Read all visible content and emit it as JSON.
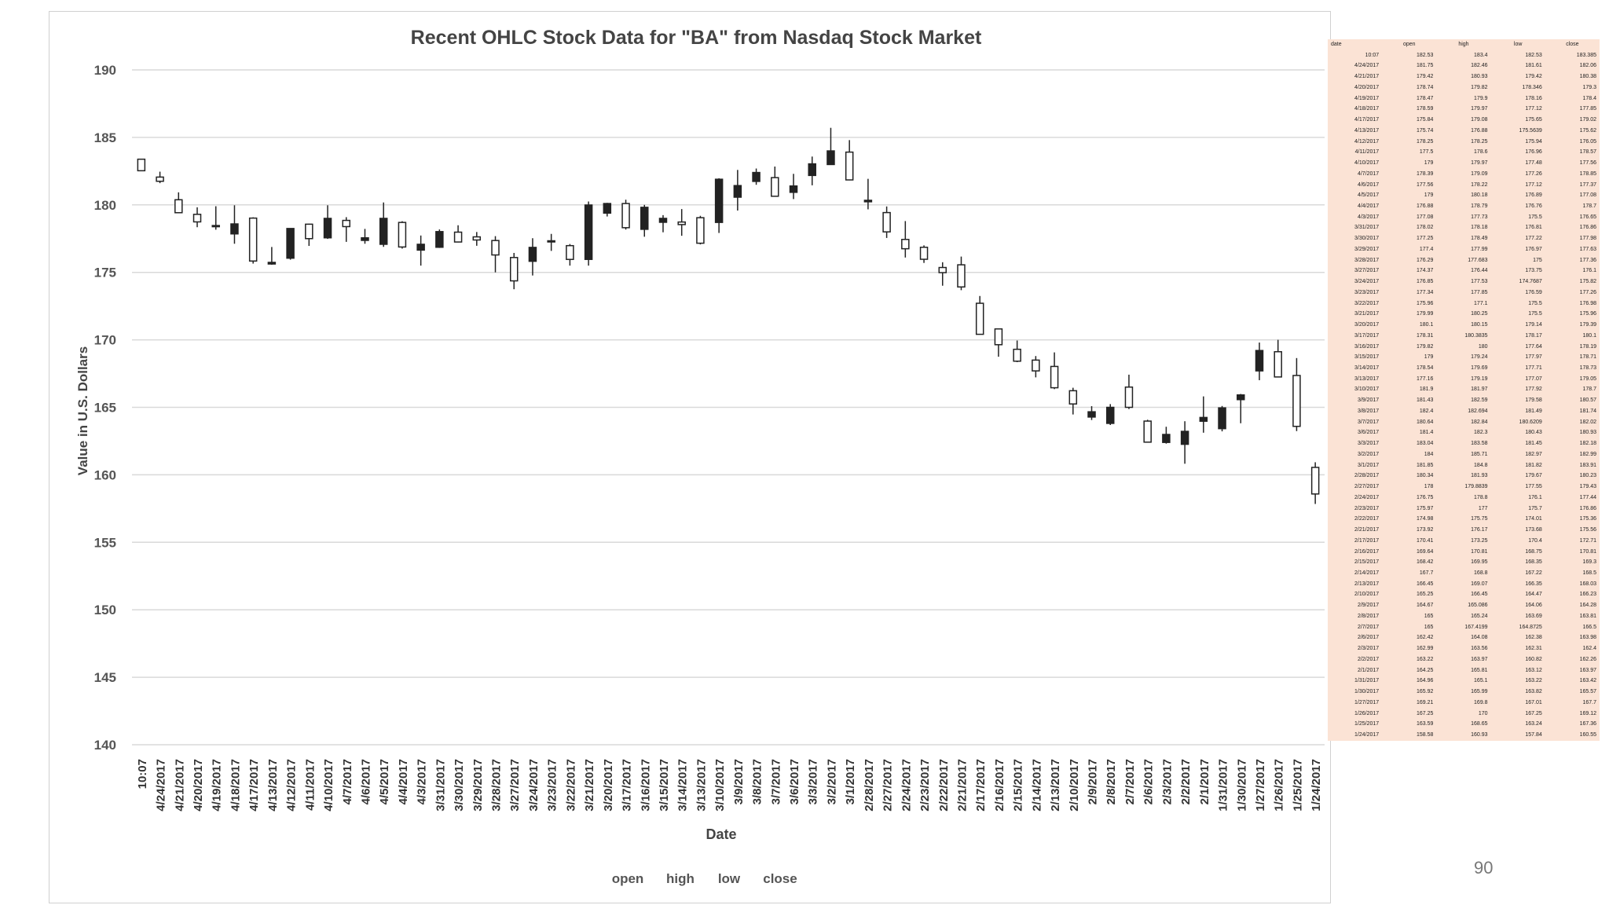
{
  "chart_data": {
    "type": "candlestick",
    "title": "Recent OHLC Stock Data for \"BA\" from Nasdaq Stock Market",
    "xlabel": "Date",
    "ylabel": "Value in U.S. Dollars",
    "ylim": [
      140,
      190
    ],
    "yticks": [
      140,
      145,
      150,
      155,
      160,
      165,
      170,
      175,
      180,
      185,
      190
    ],
    "grid": true,
    "legend": [
      "open",
      "high",
      "low",
      "close"
    ],
    "legend_position": "bottom",
    "columns": [
      "date",
      "open",
      "high",
      "low",
      "close"
    ],
    "rows": [
      [
        "10:07",
        "182.53",
        "183.4",
        "182.53",
        "183.385"
      ],
      [
        "4/24/2017",
        "181.75",
        "182.46",
        "181.61",
        "182.06"
      ],
      [
        "4/21/2017",
        "179.42",
        "180.93",
        "179.42",
        "180.38"
      ],
      [
        "4/20/2017",
        "178.74",
        "179.82",
        "178.346",
        "179.3"
      ],
      [
        "4/19/2017",
        "178.47",
        "179.9",
        "178.16",
        "178.4"
      ],
      [
        "4/18/2017",
        "178.59",
        "179.97",
        "177.12",
        "177.85"
      ],
      [
        "4/17/2017",
        "175.84",
        "179.08",
        "175.65",
        "179.02"
      ],
      [
        "4/13/2017",
        "175.74",
        "176.88",
        "175.5639",
        "175.62"
      ],
      [
        "4/12/2017",
        "178.25",
        "178.25",
        "175.94",
        "176.05"
      ],
      [
        "4/11/2017",
        "177.5",
        "178.6",
        "176.96",
        "178.57"
      ],
      [
        "4/10/2017",
        "179",
        "179.97",
        "177.48",
        "177.56"
      ],
      [
        "4/7/2017",
        "178.39",
        "179.09",
        "177.26",
        "178.85"
      ],
      [
        "4/6/2017",
        "177.56",
        "178.22",
        "177.12",
        "177.37"
      ],
      [
        "4/5/2017",
        "179",
        "180.18",
        "176.89",
        "177.08"
      ],
      [
        "4/4/2017",
        "176.88",
        "178.79",
        "176.76",
        "178.7"
      ],
      [
        "4/3/2017",
        "177.08",
        "177.73",
        "175.5",
        "176.65"
      ],
      [
        "3/31/2017",
        "178.02",
        "178.18",
        "176.81",
        "176.86"
      ],
      [
        "3/30/2017",
        "177.25",
        "178.49",
        "177.22",
        "177.98"
      ],
      [
        "3/29/2017",
        "177.4",
        "177.99",
        "176.97",
        "177.63"
      ],
      [
        "3/28/2017",
        "176.29",
        "177.683",
        "175",
        "177.36"
      ],
      [
        "3/27/2017",
        "174.37",
        "176.44",
        "173.75",
        "176.1"
      ],
      [
        "3/24/2017",
        "176.85",
        "177.53",
        "174.7687",
        "175.82"
      ],
      [
        "3/23/2017",
        "177.34",
        "177.85",
        "176.59",
        "177.26"
      ],
      [
        "3/22/2017",
        "175.96",
        "177.1",
        "175.5",
        "176.98"
      ],
      [
        "3/21/2017",
        "179.99",
        "180.25",
        "175.5",
        "175.96"
      ],
      [
        "3/20/2017",
        "180.1",
        "180.15",
        "179.14",
        "179.39"
      ],
      [
        "3/17/2017",
        "178.31",
        "180.3835",
        "178.17",
        "180.1"
      ],
      [
        "3/16/2017",
        "179.82",
        "180",
        "177.64",
        "178.19"
      ],
      [
        "3/15/2017",
        "179",
        "179.24",
        "177.97",
        "178.71"
      ],
      [
        "3/14/2017",
        "178.54",
        "179.69",
        "177.71",
        "178.73"
      ],
      [
        "3/13/2017",
        "177.16",
        "179.19",
        "177.07",
        "179.05"
      ],
      [
        "3/10/2017",
        "181.9",
        "181.97",
        "177.92",
        "178.7"
      ],
      [
        "3/9/2017",
        "181.43",
        "182.59",
        "179.58",
        "180.57"
      ],
      [
        "3/8/2017",
        "182.4",
        "182.694",
        "181.49",
        "181.74"
      ],
      [
        "3/7/2017",
        "180.64",
        "182.84",
        "180.6209",
        "182.02"
      ],
      [
        "3/6/2017",
        "181.4",
        "182.3",
        "180.43",
        "180.93"
      ],
      [
        "3/3/2017",
        "183.04",
        "183.58",
        "181.45",
        "182.18"
      ],
      [
        "3/2/2017",
        "184",
        "185.71",
        "182.97",
        "182.99"
      ],
      [
        "3/1/2017",
        "181.85",
        "184.8",
        "181.82",
        "183.91"
      ],
      [
        "2/28/2017",
        "180.34",
        "181.93",
        "179.67",
        "180.23"
      ],
      [
        "2/27/2017",
        "178",
        "179.8839",
        "177.55",
        "179.43"
      ],
      [
        "2/24/2017",
        "176.75",
        "178.8",
        "176.1",
        "177.44"
      ],
      [
        "2/23/2017",
        "175.97",
        "177",
        "175.7",
        "176.86"
      ],
      [
        "2/22/2017",
        "174.98",
        "175.75",
        "174.01",
        "175.36"
      ],
      [
        "2/21/2017",
        "173.92",
        "176.17",
        "173.68",
        "175.56"
      ],
      [
        "2/17/2017",
        "170.41",
        "173.25",
        "170.4",
        "172.71"
      ],
      [
        "2/16/2017",
        "169.64",
        "170.81",
        "168.75",
        "170.81"
      ],
      [
        "2/15/2017",
        "168.42",
        "169.95",
        "168.35",
        "169.3"
      ],
      [
        "2/14/2017",
        "167.7",
        "168.8",
        "167.22",
        "168.5"
      ],
      [
        "2/13/2017",
        "166.45",
        "169.07",
        "166.35",
        "168.03"
      ],
      [
        "2/10/2017",
        "165.25",
        "166.45",
        "164.47",
        "166.23"
      ],
      [
        "2/9/2017",
        "164.67",
        "165.086",
        "164.06",
        "164.28"
      ],
      [
        "2/8/2017",
        "165",
        "165.24",
        "163.69",
        "163.81"
      ],
      [
        "2/7/2017",
        "165",
        "167.4199",
        "164.8725",
        "166.5"
      ],
      [
        "2/6/2017",
        "162.42",
        "164.08",
        "162.38",
        "163.98"
      ],
      [
        "2/3/2017",
        "162.99",
        "163.56",
        "162.31",
        "162.4"
      ],
      [
        "2/2/2017",
        "163.22",
        "163.97",
        "160.82",
        "162.26"
      ],
      [
        "2/1/2017",
        "164.25",
        "165.81",
        "163.12",
        "163.97"
      ],
      [
        "1/31/2017",
        "164.96",
        "165.1",
        "163.22",
        "163.42"
      ],
      [
        "1/30/2017",
        "165.92",
        "165.99",
        "163.82",
        "165.57"
      ],
      [
        "1/27/2017",
        "169.21",
        "169.8",
        "167.01",
        "167.7"
      ],
      [
        "1/26/2017",
        "167.25",
        "170",
        "167.25",
        "169.12"
      ],
      [
        "1/25/2017",
        "163.59",
        "168.65",
        "163.24",
        "167.36"
      ],
      [
        "1/24/2017",
        "158.58",
        "160.93",
        "157.84",
        "160.55"
      ]
    ]
  },
  "page_number": "90"
}
